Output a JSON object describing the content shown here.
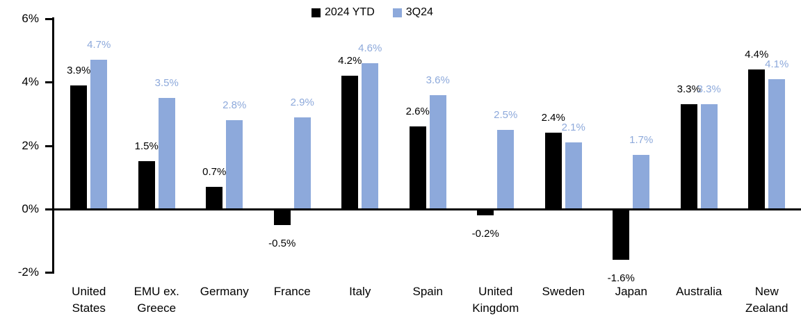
{
  "chart_data": {
    "type": "bar",
    "title": "",
    "xlabel": "",
    "ylabel": "",
    "grid": false,
    "legend_position": "top-center",
    "categories": [
      "United States",
      "EMU ex. Greece",
      "Germany",
      "France",
      "Italy",
      "Spain",
      "United Kingdom",
      "Sweden",
      "Japan",
      "Australia",
      "New Zealand"
    ],
    "categories_wrapped": [
      [
        "United",
        "States"
      ],
      [
        "EMU ex.",
        "Greece"
      ],
      [
        "Germany"
      ],
      [
        "France"
      ],
      [
        "Italy"
      ],
      [
        "Spain"
      ],
      [
        "United",
        "Kingdom"
      ],
      [
        "Sweden"
      ],
      [
        "Japan"
      ],
      [
        "Australia"
      ],
      [
        "New",
        "Zealand"
      ]
    ],
    "series": [
      {
        "name": "2024 YTD",
        "color": "#000000",
        "label_color": "#000000",
        "values": [
          3.9,
          1.5,
          0.7,
          -0.5,
          4.2,
          2.6,
          -0.2,
          2.4,
          -1.6,
          3.3,
          4.4
        ],
        "labels": [
          "3.9%",
          "1.5%",
          "0.7%",
          "-0.5%",
          "4.2%",
          "2.6%",
          "-0.2%",
          "2.4%",
          "-1.6%",
          "3.3%",
          "4.4%"
        ]
      },
      {
        "name": "3Q24",
        "color": "#8DA9DB",
        "label_color": "#8DA9DB",
        "values": [
          4.7,
          3.5,
          2.8,
          2.9,
          4.6,
          3.6,
          2.5,
          2.1,
          1.7,
          3.3,
          4.1
        ],
        "labels": [
          "4.7%",
          "3.5%",
          "2.8%",
          "2.9%",
          "4.6%",
          "3.6%",
          "2.5%",
          "2.1%",
          "1.7%",
          "3.3%",
          "4.1%"
        ]
      }
    ],
    "y_axis": {
      "ylim": [
        -2,
        6
      ],
      "ticks": [
        {
          "label": "6%",
          "value": 6
        },
        {
          "label": "4%",
          "value": 4
        },
        {
          "label": "2%",
          "value": 2
        },
        {
          "label": "0%",
          "value": 0
        },
        {
          "label": "-2%",
          "value": -2
        }
      ]
    }
  }
}
